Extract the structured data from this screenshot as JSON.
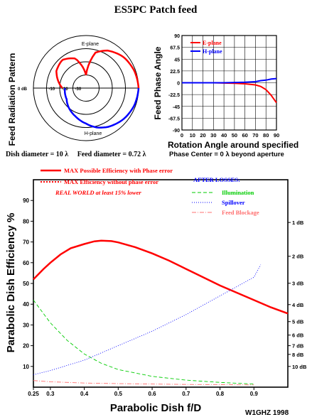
{
  "header": {
    "title": "ES5PC Patch feed"
  },
  "pattern_panel": {
    "ylabel": "Feed Radiation Pattern",
    "e_label": "E-plane",
    "h_label": "H-plane",
    "ring_labels": [
      "-10",
      "-20",
      "-30"
    ],
    "zero_label": "0 dB",
    "caption": "Dish diameter = 10 λ     Feed diameter = 0.72 λ"
  },
  "phase_panel": {
    "ylabel": "Feed Phase Angle",
    "xlabel": "Rotation Angle around specified",
    "subcaption": "Phase Center = 0 λ beyond aperture",
    "legend": [
      "E-plane",
      "H-plane"
    ],
    "yticks": [
      "90",
      "67.5",
      "45",
      "22.5",
      "0",
      "-22.5",
      "-45",
      "-67.5",
      "-90"
    ],
    "xticks": [
      "0",
      "10",
      "20",
      "30",
      "40",
      "50",
      "60",
      "70",
      "80",
      "90"
    ]
  },
  "main_panel": {
    "xlabel": "Parabolic Dish f/D",
    "ylabel": "Parabolic Dish Efficiency %",
    "xticks": [
      "0.25",
      "0.3",
      "0.4",
      "0.5",
      "0.6",
      "0.7",
      "0.8",
      "0.9"
    ],
    "yticks": [
      "10",
      "20",
      "30",
      "40",
      "50",
      "60",
      "70",
      "80",
      "90"
    ],
    "db_ticks": [
      "1 dB",
      "2 dB",
      "3 dB",
      "4 dB",
      "5 dB",
      "6 dB",
      "7 dB",
      "8 dB",
      "10 dB"
    ],
    "legend_solid": "MAX Possible Efficiency with Phase error",
    "legend_dotted": "MAX Efficiency without phase error",
    "real_world": "REAL WORLD at least 15% lower",
    "after_losses": "AFTER LOSSES:",
    "loss_labels": [
      "Illumination",
      "Spillover",
      "Feed Blockage"
    ],
    "credit": "W1GHZ 1998"
  },
  "colors": {
    "red": "#ff0000",
    "green": "#00cc00",
    "blue": "#0000ff",
    "salmon": "#ff7070",
    "grid": "#bbbbbb",
    "axis": "#000000"
  },
  "chart_data": [
    {
      "type": "line",
      "chart": "feed radiation pattern (polar)",
      "units": "dB",
      "ring_levels": [
        -10,
        -20,
        -30
      ],
      "series": [
        {
          "name": "E-plane",
          "points": [
            [
              0,
              0
            ],
            [
              20,
              -1
            ],
            [
              40,
              -3
            ],
            [
              60,
              -7
            ],
            [
              75,
              -12
            ],
            [
              90,
              -30
            ],
            [
              110,
              -16
            ],
            [
              130,
              -12
            ],
            [
              150,
              -14
            ],
            [
              180,
              -22
            ]
          ]
        },
        {
          "name": "H-plane",
          "points": [
            [
              0,
              0
            ],
            [
              20,
              -1
            ],
            [
              40,
              -3
            ],
            [
              60,
              -6
            ],
            [
              75,
              -9
            ],
            [
              90,
              -13
            ],
            [
              110,
              -17
            ],
            [
              130,
              -20
            ],
            [
              150,
              -23
            ],
            [
              180,
              -24
            ]
          ]
        }
      ]
    },
    {
      "type": "line",
      "chart": "feed phase angle",
      "xlim": [
        0,
        90
      ],
      "ylim": [
        -90,
        90
      ],
      "xticks": [
        0,
        10,
        20,
        30,
        40,
        50,
        60,
        70,
        80,
        90
      ],
      "yticks": [
        -90,
        -67.5,
        -45,
        -22.5,
        0,
        22.5,
        45,
        67.5,
        90
      ],
      "series": [
        {
          "name": "E-plane",
          "x": [
            0,
            10,
            20,
            30,
            40,
            50,
            60,
            65,
            70,
            75,
            80,
            85,
            90
          ],
          "y": [
            0,
            0,
            0,
            0,
            -0.5,
            -1,
            -2,
            -3,
            -4,
            -7,
            -13,
            -24,
            -38
          ]
        },
        {
          "name": "H-plane",
          "x": [
            0,
            10,
            20,
            30,
            40,
            50,
            60,
            65,
            70,
            75,
            80,
            85,
            90
          ],
          "y": [
            0,
            0,
            0,
            0,
            0,
            0.5,
            1,
            1.5,
            2,
            4,
            5,
            7,
            8
          ]
        }
      ]
    },
    {
      "type": "line",
      "chart": "parabolic dish efficiency vs f/D",
      "xlim": [
        0.25,
        1.0
      ],
      "ylim": [
        0,
        100
      ],
      "xticks": [
        0.25,
        0.3,
        0.4,
        0.5,
        0.6,
        0.7,
        0.8,
        0.9
      ],
      "yticks": [
        10,
        20,
        30,
        40,
        50,
        60,
        70,
        80,
        90
      ],
      "db_tick_values": [
        79.4,
        63.1,
        50.1,
        39.8,
        31.6,
        25.1,
        20.0,
        15.8,
        10.0
      ],
      "series": [
        {
          "name": "MAX Possible Efficiency with Phase error",
          "x": [
            0.25,
            0.28,
            0.3,
            0.33,
            0.36,
            0.4,
            0.43,
            0.45,
            0.48,
            0.5,
            0.55,
            0.6,
            0.65,
            0.7,
            0.75,
            0.8,
            0.85,
            0.9,
            0.95,
            1.0
          ],
          "y": [
            52,
            57,
            60,
            64,
            67,
            69,
            70.3,
            70.6,
            70.4,
            69.8,
            67.5,
            64.5,
            61,
            57,
            53,
            49,
            45.5,
            42,
            38.5,
            35.5
          ]
        },
        {
          "name": "Illumination",
          "x": [
            0.25,
            0.3,
            0.35,
            0.4,
            0.45,
            0.5,
            0.6,
            0.7,
            0.8,
            0.9
          ],
          "y": [
            42,
            31,
            22.5,
            16,
            11.5,
            8.5,
            5.2,
            3.4,
            2.3,
            1.5
          ]
        },
        {
          "name": "Spillover",
          "x": [
            0.25,
            0.3,
            0.4,
            0.5,
            0.6,
            0.7,
            0.8,
            0.9,
            0.92
          ],
          "y": [
            6,
            8,
            13,
            20,
            27,
            35,
            44,
            53,
            59
          ]
        },
        {
          "name": "Feed Blockage",
          "x": [
            0.25,
            0.3,
            0.4,
            0.5,
            0.6,
            0.7,
            0.8,
            0.9
          ],
          "y": [
            3.2,
            2.6,
            2.0,
            1.7,
            1.5,
            1.3,
            1.2,
            1.1
          ]
        }
      ]
    }
  ]
}
